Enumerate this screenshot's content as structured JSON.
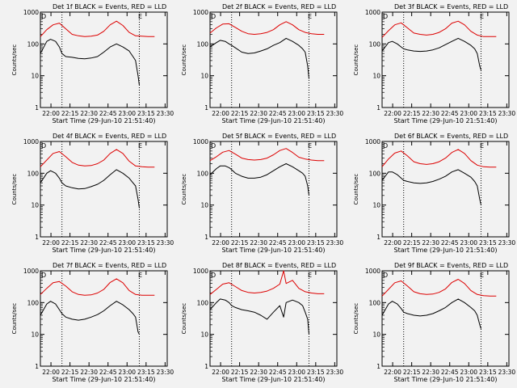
{
  "page": {
    "background": "#f2f2f2",
    "colors": {
      "events": "#000000",
      "lld": "#dd0000",
      "axis": "#000000"
    }
  },
  "chart_data": {
    "type": "line",
    "yscale": "log",
    "ylim": [
      1,
      1000
    ],
    "yticks": [
      1,
      10,
      100,
      1000
    ],
    "ytick_labels": [
      "1",
      "10",
      "100",
      "1000"
    ],
    "xlim_min": [
      0,
      100
    ],
    "xticks_min": [
      8.33,
      23.33,
      38.33,
      53.33,
      68.33,
      83.33,
      98.33
    ],
    "xtick_labels": [
      "22:00",
      "22:15",
      "22:30",
      "22:45",
      "23:00",
      "23:15",
      "23:30"
    ],
    "xlabel": "Start Time (29-Jun-10 21:51:40)",
    "ylabel": "Counts/sec",
    "title_suffix": "BLACK = Events, RED = LLD",
    "d_marker": "D",
    "e_marker": "E",
    "dotted_lines_min": [
      17,
      78
    ],
    "panels": [
      {
        "title": "Det 1f",
        "series": [
          {
            "name": "Events",
            "color": "#000000",
            "x": [
              0,
              5,
              8,
              12,
              15,
              17,
              20,
              25,
              30,
              35,
              40,
              45,
              50,
              55,
              60,
              65,
              70,
              73,
              75,
              77,
              78
            ],
            "y": [
              50,
              120,
              140,
              120,
              80,
              50,
              40,
              38,
              35,
              34,
              36,
              40,
              55,
              80,
              100,
              80,
              60,
              40,
              30,
              10,
              5
            ]
          },
          {
            "name": "LLD",
            "color": "#dd0000",
            "x": [
              0,
              5,
              10,
              15,
              20,
              25,
              30,
              35,
              40,
              45,
              50,
              55,
              60,
              65,
              70,
              75,
              80,
              85,
              90
            ],
            "y": [
              170,
              280,
              400,
              450,
              300,
              200,
              180,
              170,
              175,
              190,
              250,
              400,
              520,
              380,
              230,
              180,
              175,
              170,
              170
            ]
          }
        ]
      },
      {
        "title": "Det 2f",
        "series": [
          {
            "name": "Events",
            "color": "#000000",
            "x": [
              0,
              5,
              8,
              12,
              15,
              17,
              20,
              25,
              30,
              35,
              40,
              45,
              50,
              55,
              60,
              65,
              70,
              73,
              75,
              77,
              78
            ],
            "y": [
              80,
              110,
              130,
              120,
              100,
              90,
              75,
              55,
              50,
              52,
              60,
              70,
              90,
              110,
              150,
              120,
              90,
              70,
              55,
              20,
              8
            ]
          },
          {
            "name": "LLD",
            "color": "#dd0000",
            "x": [
              0,
              5,
              10,
              15,
              20,
              25,
              30,
              35,
              40,
              45,
              50,
              55,
              60,
              65,
              70,
              75,
              80,
              85,
              90
            ],
            "y": [
              220,
              320,
              420,
              430,
              330,
              250,
              210,
              200,
              210,
              230,
              280,
              400,
              500,
              400,
              280,
              230,
              210,
              200,
              200
            ]
          }
        ]
      },
      {
        "title": "Det 3f",
        "series": [
          {
            "name": "Events",
            "color": "#000000",
            "x": [
              0,
              5,
              8,
              12,
              15,
              17,
              20,
              25,
              30,
              35,
              40,
              45,
              50,
              55,
              60,
              65,
              70,
              73,
              75,
              77,
              78
            ],
            "y": [
              60,
              110,
              120,
              100,
              80,
              70,
              65,
              60,
              58,
              60,
              65,
              75,
              95,
              120,
              150,
              120,
              90,
              70,
              50,
              20,
              15
            ]
          },
          {
            "name": "LLD",
            "color": "#dd0000",
            "x": [
              0,
              5,
              10,
              15,
              20,
              25,
              30,
              35,
              40,
              45,
              50,
              55,
              60,
              65,
              70,
              75,
              80,
              85,
              90
            ],
            "y": [
              160,
              260,
              400,
              460,
              320,
              220,
              200,
              190,
              200,
              230,
              300,
              450,
              520,
              400,
              250,
              190,
              170,
              170,
              170
            ]
          }
        ]
      },
      {
        "title": "Det 4f",
        "series": [
          {
            "name": "Events",
            "color": "#000000",
            "x": [
              0,
              5,
              8,
              12,
              15,
              17,
              20,
              25,
              30,
              35,
              40,
              45,
              50,
              55,
              60,
              65,
              70,
              73,
              75,
              77,
              78
            ],
            "y": [
              50,
              100,
              120,
              100,
              70,
              50,
              40,
              35,
              32,
              33,
              38,
              45,
              60,
              90,
              130,
              100,
              70,
              50,
              40,
              15,
              8
            ]
          },
          {
            "name": "LLD",
            "color": "#dd0000",
            "x": [
              0,
              5,
              10,
              15,
              20,
              25,
              30,
              35,
              40,
              45,
              50,
              55,
              60,
              65,
              70,
              75,
              80,
              85,
              90
            ],
            "y": [
              160,
              260,
              420,
              480,
              330,
              220,
              180,
              170,
              175,
              200,
              260,
              420,
              560,
              420,
              240,
              170,
              160,
              155,
              155
            ]
          }
        ]
      },
      {
        "title": "Det 5f",
        "series": [
          {
            "name": "Events",
            "color": "#000000",
            "x": [
              0,
              5,
              8,
              12,
              15,
              17,
              20,
              25,
              30,
              35,
              40,
              45,
              50,
              55,
              60,
              65,
              70,
              73,
              75,
              77,
              78
            ],
            "y": [
              90,
              140,
              170,
              170,
              150,
              130,
              100,
              80,
              70,
              70,
              75,
              90,
              120,
              160,
              200,
              160,
              120,
              100,
              80,
              40,
              20
            ]
          },
          {
            "name": "LLD",
            "color": "#dd0000",
            "x": [
              0,
              5,
              10,
              15,
              20,
              25,
              30,
              35,
              40,
              45,
              50,
              55,
              60,
              65,
              70,
              75,
              80,
              85,
              90
            ],
            "y": [
              250,
              330,
              460,
              520,
              400,
              300,
              270,
              260,
              270,
              300,
              380,
              520,
              600,
              450,
              320,
              280,
              260,
              250,
              250
            ]
          }
        ]
      },
      {
        "title": "Det 6f",
        "series": [
          {
            "name": "Events",
            "color": "#000000",
            "x": [
              0,
              5,
              8,
              12,
              15,
              17,
              20,
              25,
              30,
              35,
              40,
              45,
              50,
              55,
              60,
              65,
              70,
              73,
              75,
              77,
              78
            ],
            "y": [
              60,
              110,
              110,
              90,
              70,
              60,
              55,
              50,
              48,
              50,
              55,
              65,
              80,
              110,
              130,
              100,
              75,
              55,
              40,
              15,
              10
            ]
          },
          {
            "name": "LLD",
            "color": "#dd0000",
            "x": [
              0,
              5,
              10,
              15,
              20,
              25,
              30,
              35,
              40,
              45,
              50,
              55,
              60,
              65,
              70,
              75,
              80,
              85,
              90
            ],
            "y": [
              160,
              280,
              430,
              500,
              350,
              230,
              200,
              190,
              200,
              230,
              300,
              450,
              560,
              420,
              250,
              180,
              160,
              155,
              155
            ]
          }
        ]
      },
      {
        "title": "Det 7f",
        "series": [
          {
            "name": "Events",
            "color": "#000000",
            "x": [
              0,
              5,
              8,
              12,
              15,
              17,
              20,
              25,
              30,
              35,
              40,
              45,
              50,
              55,
              60,
              65,
              70,
              73,
              75,
              77,
              78
            ],
            "y": [
              40,
              90,
              110,
              90,
              60,
              45,
              35,
              30,
              28,
              30,
              35,
              42,
              55,
              80,
              110,
              85,
              60,
              45,
              35,
              12,
              10
            ]
          },
          {
            "name": "LLD",
            "color": "#dd0000",
            "x": [
              0,
              5,
              10,
              15,
              20,
              25,
              30,
              35,
              40,
              45,
              50,
              55,
              60,
              65,
              70,
              75,
              80,
              85,
              90
            ],
            "y": [
              180,
              280,
              420,
              460,
              330,
              220,
              180,
              170,
              175,
              200,
              260,
              430,
              560,
              420,
              240,
              180,
              170,
              170,
              170
            ]
          }
        ]
      },
      {
        "title": "Det 8f",
        "series": [
          {
            "name": "Events",
            "color": "#000000",
            "x": [
              0,
              5,
              8,
              12,
              15,
              17,
              20,
              25,
              30,
              35,
              40,
              45,
              50,
              55,
              58,
              60,
              65,
              70,
              73,
              75,
              77,
              78
            ],
            "y": [
              60,
              100,
              130,
              120,
              100,
              80,
              70,
              60,
              55,
              50,
              40,
              30,
              50,
              80,
              35,
              100,
              120,
              100,
              80,
              50,
              30,
              10
            ]
          },
          {
            "name": "LLD",
            "color": "#dd0000",
            "x": [
              0,
              5,
              10,
              15,
              20,
              25,
              30,
              35,
              40,
              45,
              50,
              55,
              58,
              60,
              65,
              70,
              75,
              80,
              85,
              90
            ],
            "y": [
              180,
              260,
              380,
              420,
              320,
              240,
              210,
              200,
              210,
              230,
              280,
              380,
              1000,
              400,
              500,
              280,
              220,
              200,
              190,
              190
            ]
          }
        ]
      },
      {
        "title": "Det 9f",
        "series": [
          {
            "name": "Events",
            "color": "#000000",
            "x": [
              0,
              5,
              8,
              12,
              15,
              17,
              20,
              25,
              30,
              35,
              40,
              45,
              50,
              55,
              60,
              65,
              70,
              73,
              75,
              77,
              78
            ],
            "y": [
              40,
              90,
              110,
              90,
              65,
              50,
              45,
              40,
              38,
              40,
              45,
              55,
              70,
              100,
              130,
              100,
              70,
              55,
              40,
              20,
              15
            ]
          },
          {
            "name": "LLD",
            "color": "#dd0000",
            "x": [
              0,
              5,
              10,
              15,
              20,
              25,
              30,
              35,
              40,
              45,
              50,
              55,
              60,
              65,
              70,
              75,
              80,
              85,
              90
            ],
            "y": [
              160,
              260,
              420,
              480,
              330,
              220,
              190,
              180,
              185,
              210,
              270,
              430,
              540,
              400,
              240,
              180,
              165,
              160,
              160
            ]
          }
        ]
      }
    ]
  }
}
